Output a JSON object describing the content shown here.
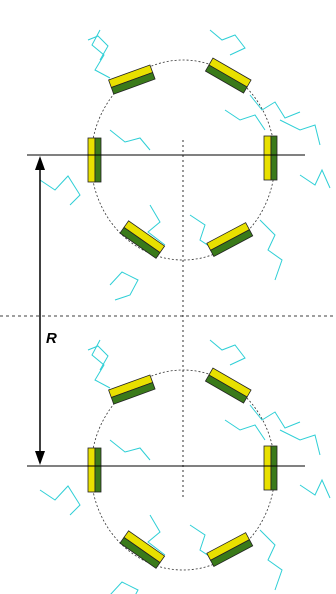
{
  "label": "R"
}
